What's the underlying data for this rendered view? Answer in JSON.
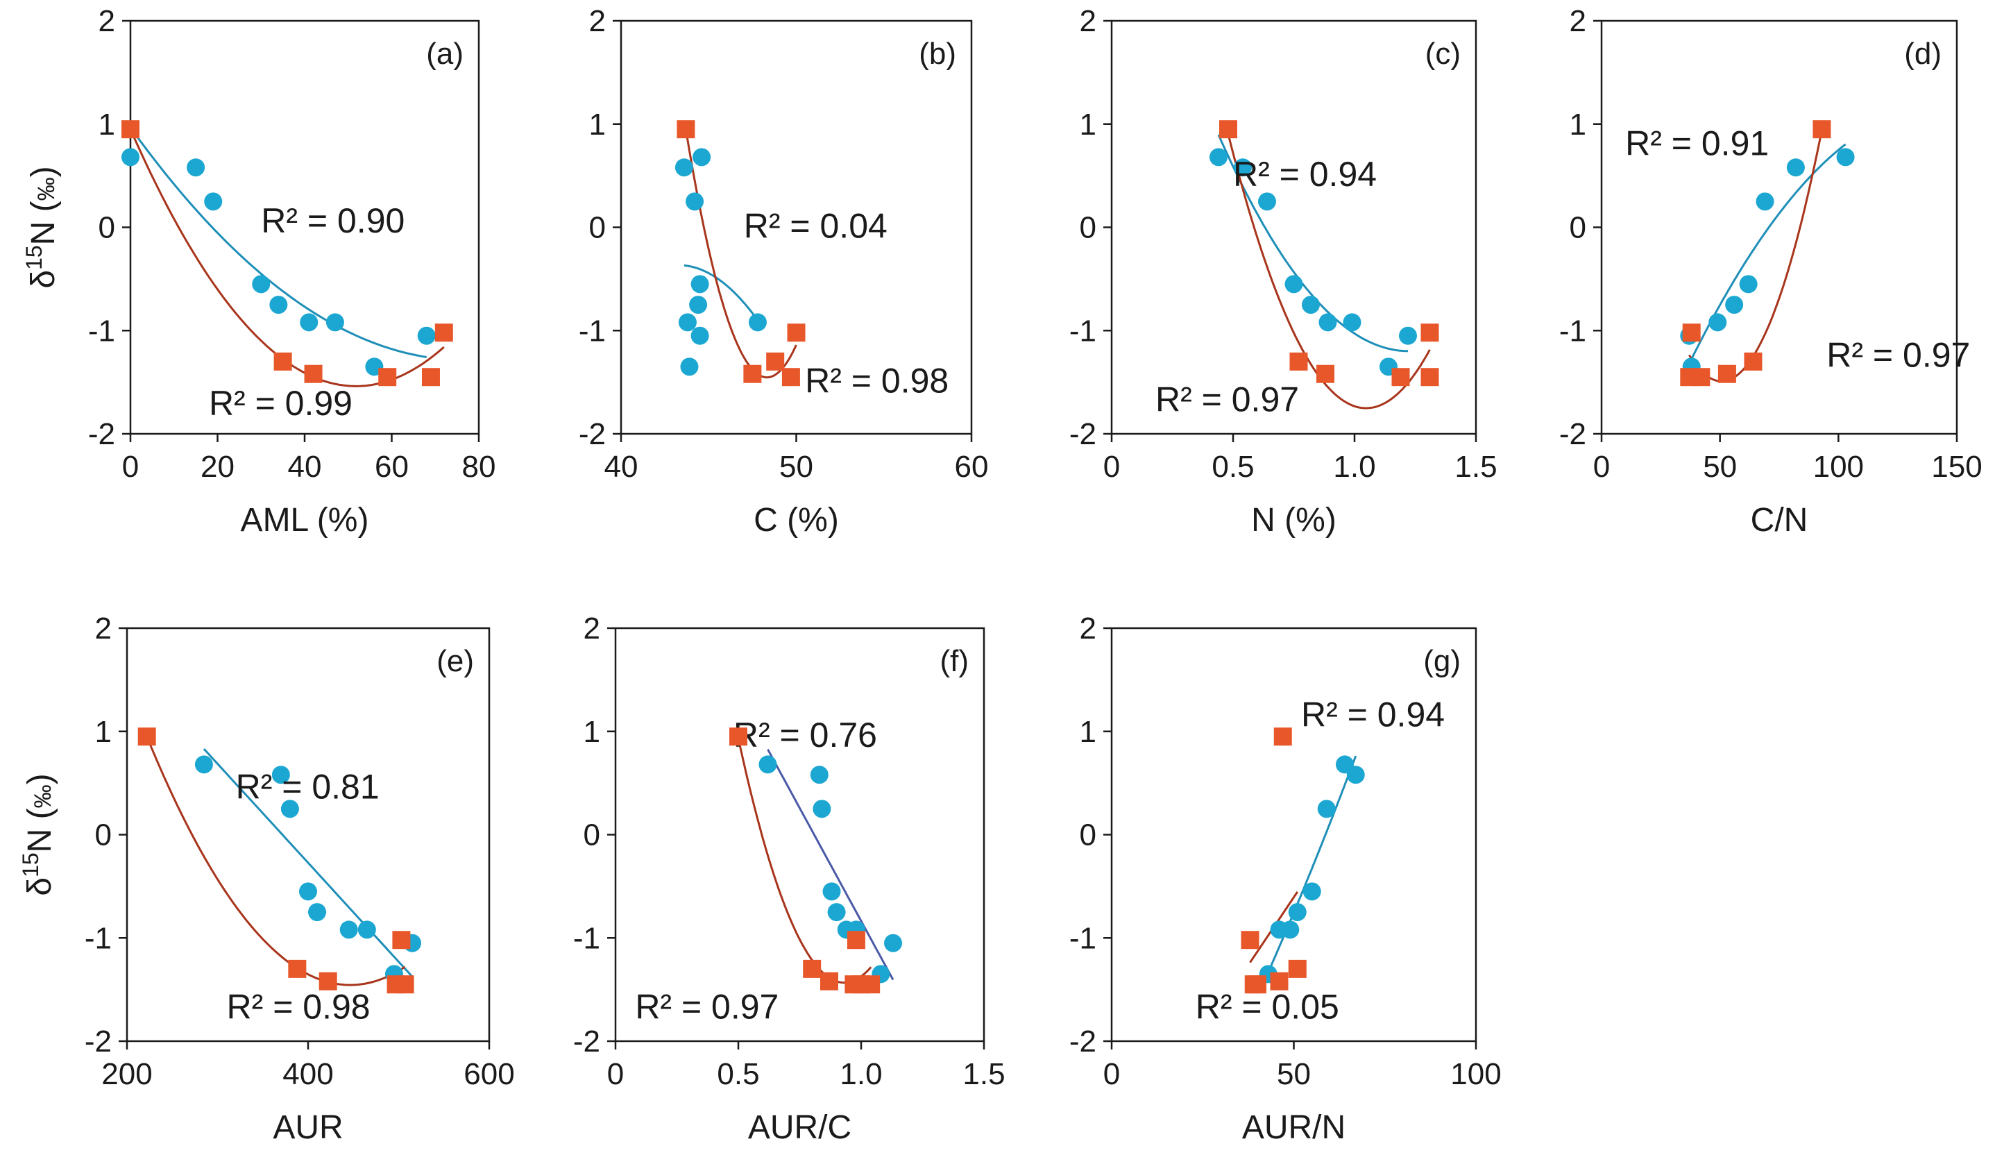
{
  "colors": {
    "blue": "#1ba7d1",
    "orange": "#e8572a",
    "blue_line": "#1f8fb8",
    "blue_line_alt": "#4a5aa8",
    "brown_line": "#a8351c",
    "axis": "#1a1a1a"
  },
  "ylabel_prefix": "δ",
  "ylabel_sup": "15",
  "ylabel_main": "N (",
  "ylabel_unit": "‰",
  "ylabel_end": ")",
  "chart_data": [
    {
      "type": "scatter",
      "label": "(a)",
      "xlabel": "AML (%)",
      "xlim": [
        0,
        80
      ],
      "xticks": [
        "0",
        "20",
        "40",
        "60",
        "80"
      ],
      "ylim": [
        -2,
        2
      ],
      "yticks": [
        "-2",
        "-1",
        "0",
        "1",
        "2"
      ],
      "show_ylabel": true,
      "series": [
        {
          "marker": "circle",
          "color": "blue",
          "fit": "poly2",
          "r2_text": "R² = 0.90",
          "x": [
            0,
            15,
            19,
            30,
            34,
            41,
            47,
            56,
            68
          ],
          "y": [
            0.68,
            0.58,
            0.25,
            -0.55,
            -0.75,
            -0.92,
            -0.92,
            -1.35,
            -1.05
          ]
        },
        {
          "marker": "square",
          "color": "orange",
          "fit": "poly2",
          "r2_text": "R² = 0.99",
          "x": [
            0,
            35,
            42,
            59,
            69,
            72
          ],
          "y": [
            0.95,
            -1.3,
            -1.42,
            -1.45,
            -1.45,
            -1.02
          ]
        }
      ]
    },
    {
      "type": "scatter",
      "label": "(b)",
      "xlabel": "C (%)",
      "xlim": [
        40,
        60
      ],
      "xticks": [
        "40",
        "50",
        "60"
      ],
      "ylim": [
        -2,
        2
      ],
      "yticks": [
        "-2",
        "-1",
        "0",
        "1",
        "2"
      ],
      "show_ylabel": false,
      "series": [
        {
          "marker": "circle",
          "color": "blue",
          "fit": "poly2",
          "r2_text": "R² = 0.04",
          "x": [
            43.6,
            44.6,
            44.2,
            44.5,
            44.4,
            43.8,
            44.5,
            43.9,
            47.8
          ],
          "y": [
            0.58,
            0.68,
            0.25,
            -0.55,
            -0.75,
            -0.92,
            -1.05,
            -1.35,
            -0.92
          ]
        },
        {
          "marker": "square",
          "color": "orange",
          "fit": "poly2",
          "r2_text": "R² = 0.98",
          "x": [
            43.7,
            47.5,
            48.8,
            49.7,
            50.0
          ],
          "y": [
            0.95,
            -1.42,
            -1.3,
            -1.45,
            -1.02
          ]
        }
      ]
    },
    {
      "type": "scatter",
      "label": "(c)",
      "xlabel": "N (%)",
      "xlim": [
        0,
        1.5
      ],
      "xticks": [
        "0",
        "0.5",
        "1.0",
        "1.5"
      ],
      "ylim": [
        -2,
        2
      ],
      "yticks": [
        "-2",
        "-1",
        "0",
        "1",
        "2"
      ],
      "show_ylabel": false,
      "series": [
        {
          "marker": "circle",
          "color": "blue",
          "fit": "poly2",
          "r2_text": "R² = 0.94",
          "x": [
            0.44,
            0.54,
            0.64,
            0.75,
            0.82,
            0.89,
            0.99,
            1.14,
            1.22
          ],
          "y": [
            0.68,
            0.58,
            0.25,
            -0.55,
            -0.75,
            -0.92,
            -0.92,
            -1.35,
            -1.05
          ]
        },
        {
          "marker": "square",
          "color": "orange",
          "fit": "poly2",
          "r2_text": "R² = 0.97",
          "x": [
            0.48,
            0.77,
            0.88,
            1.19,
            1.31,
            1.31
          ],
          "y": [
            0.95,
            -1.3,
            -1.42,
            -1.45,
            -1.45,
            -1.02
          ]
        }
      ]
    },
    {
      "type": "scatter",
      "label": "(d)",
      "xlabel": "C/N",
      "xlim": [
        0,
        150
      ],
      "xticks": [
        "0",
        "50",
        "100",
        "150"
      ],
      "ylim": [
        -2,
        2
      ],
      "yticks": [
        "-2",
        "-1",
        "0",
        "1",
        "2"
      ],
      "show_ylabel": false,
      "series": [
        {
          "marker": "circle",
          "color": "blue",
          "fit": "poly2",
          "r2_text": "R² = 0.91",
          "x": [
            37,
            38,
            49,
            56,
            62,
            69,
            82,
            103
          ],
          "y": [
            -1.05,
            -1.35,
            -0.92,
            -0.75,
            -0.55,
            0.25,
            0.58,
            0.68
          ]
        },
        {
          "marker": "square",
          "color": "orange",
          "fit": "poly2",
          "r2_text": "R² = 0.97",
          "x": [
            37,
            38,
            42,
            53,
            64,
            93
          ],
          "y": [
            -1.45,
            -1.02,
            -1.45,
            -1.42,
            -1.3,
            0.95
          ]
        }
      ]
    },
    {
      "type": "scatter",
      "label": "(e)",
      "xlabel": "AUR",
      "xlim": [
        200,
        600
      ],
      "xticks": [
        "200",
        "400",
        "600"
      ],
      "ylim": [
        -2,
        2
      ],
      "yticks": [
        "-2",
        "-1",
        "0",
        "1",
        "2"
      ],
      "show_ylabel": true,
      "series": [
        {
          "marker": "circle",
          "color": "blue",
          "fit": "linear",
          "r2_text": "R² = 0.81",
          "x": [
            285,
            370,
            380,
            400,
            410,
            445,
            465,
            495,
            515
          ],
          "y": [
            0.68,
            0.58,
            0.25,
            -0.55,
            -0.75,
            -0.92,
            -0.92,
            -1.35,
            -1.05
          ]
        },
        {
          "marker": "square",
          "color": "orange",
          "fit": "poly2",
          "r2_text": "R² = 0.98",
          "x": [
            222,
            388,
            422,
            497,
            507,
            503
          ],
          "y": [
            0.95,
            -1.3,
            -1.42,
            -1.45,
            -1.45,
            -1.02
          ]
        }
      ]
    },
    {
      "type": "scatter",
      "label": "(f)",
      "xlabel": "AUR/C",
      "xlim": [
        0,
        1.5
      ],
      "xticks": [
        "0",
        "0.5",
        "1.0",
        "1.5"
      ],
      "ylim": [
        -2,
        2
      ],
      "yticks": [
        "-2",
        "-1",
        "0",
        "1",
        "2"
      ],
      "show_ylabel": false,
      "series": [
        {
          "marker": "circle",
          "color": "blue",
          "fit": "linear",
          "r2_text": "R² = 0.76",
          "x": [
            0.62,
            0.83,
            0.84,
            0.88,
            0.9,
            0.94,
            0.98,
            1.08,
            1.13
          ],
          "y": [
            0.68,
            0.58,
            0.25,
            -0.55,
            -0.75,
            -0.92,
            -0.92,
            -1.35,
            -1.05
          ]
        },
        {
          "marker": "square",
          "color": "orange",
          "fit": "poly2",
          "r2_text": "R² = 0.97",
          "x": [
            0.5,
            0.8,
            0.87,
            0.97,
            1.0,
            1.04,
            0.98
          ],
          "y": [
            0.95,
            -1.3,
            -1.42,
            -1.45,
            -1.45,
            -1.45,
            -1.02
          ]
        }
      ]
    },
    {
      "type": "scatter",
      "label": "(g)",
      "xlabel": "AUR/N",
      "xlim": [
        0,
        100
      ],
      "xticks": [
        "0",
        "50",
        "100"
      ],
      "ylim": [
        -2,
        2
      ],
      "yticks": [
        "-2",
        "-1",
        "0",
        "1",
        "2"
      ],
      "show_ylabel": false,
      "series": [
        {
          "marker": "circle",
          "color": "blue",
          "fit": "poly2",
          "r2_text": "R² = 0.94",
          "x": [
            43,
            46,
            49,
            51,
            55,
            59,
            64,
            67
          ],
          "y": [
            -1.35,
            -0.92,
            -0.92,
            -0.75,
            -0.55,
            0.25,
            0.68,
            0.58
          ]
        },
        {
          "marker": "square",
          "color": "orange",
          "fit": "linear",
          "r2_text": "R² = 0.05",
          "x": [
            38,
            39,
            46,
            47,
            51,
            40
          ],
          "y": [
            -1.02,
            -1.45,
            -1.42,
            0.95,
            -1.3,
            -1.45
          ]
        }
      ]
    }
  ]
}
